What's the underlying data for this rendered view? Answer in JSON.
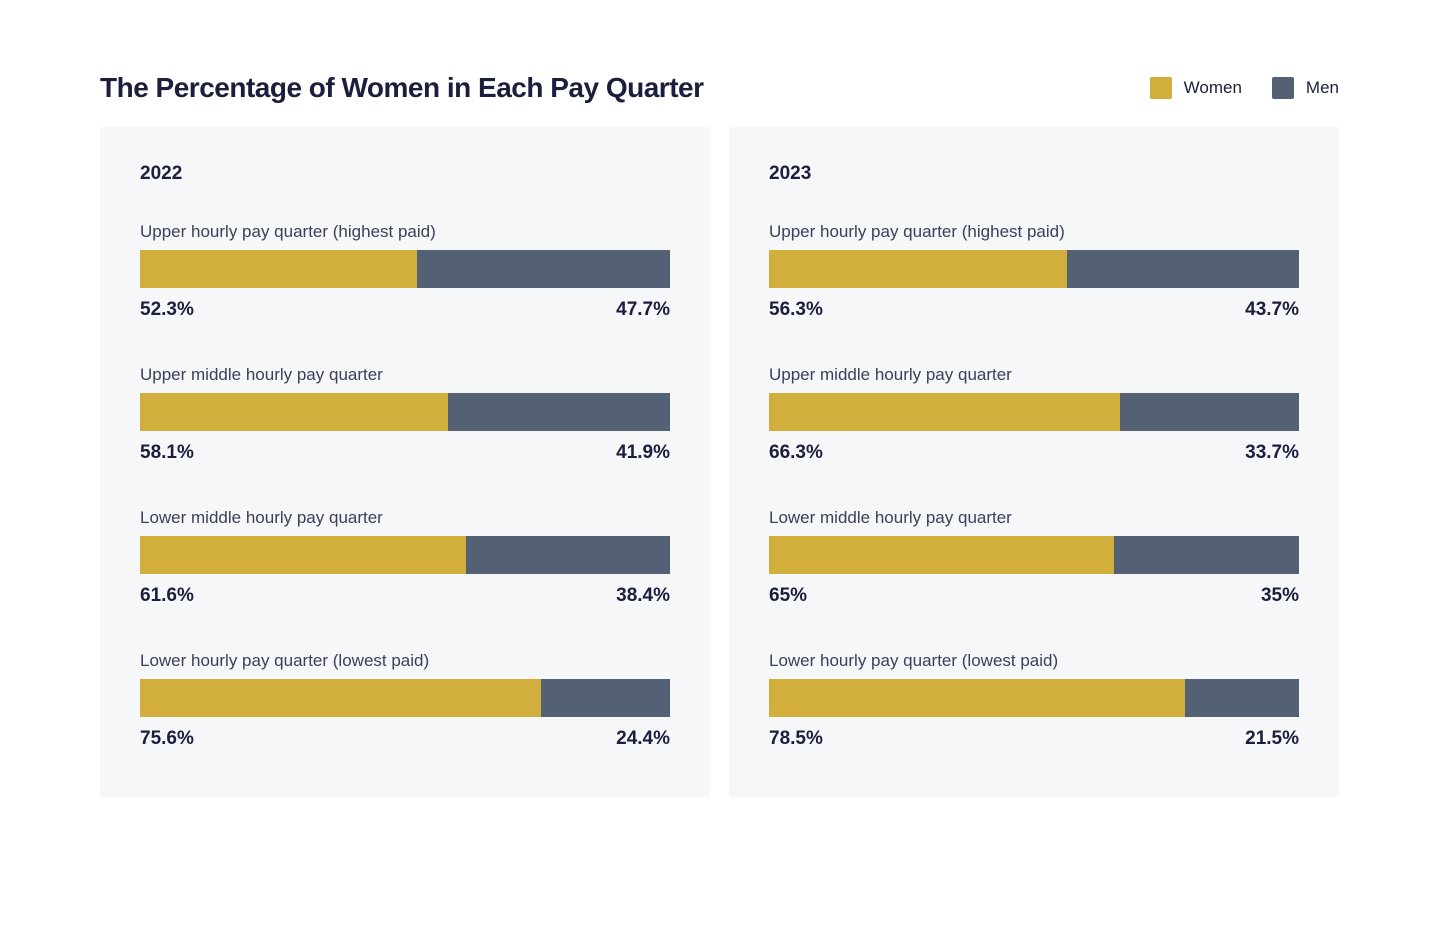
{
  "page": {
    "title": "The Percentage of Women in Each Pay Quarter"
  },
  "colors": {
    "women": "#D2AE3C",
    "men": "#546174",
    "panel_bg": "#F6F7F9",
    "text_dark": "#1B1E3C",
    "text_label": "#3A4059"
  },
  "legend": {
    "items": [
      {
        "label": "Women",
        "color": "#D2AE3C"
      },
      {
        "label": "Men",
        "color": "#546174"
      }
    ]
  },
  "panels": [
    {
      "year": "2022",
      "rows": [
        {
          "label": "Upper hourly pay quarter (highest paid)",
          "women": "52.3%",
          "men": "47.7%"
        },
        {
          "label": "Upper middle hourly pay quarter",
          "women": "58.1%",
          "men": "41.9%"
        },
        {
          "label": "Lower middle hourly pay quarter",
          "women": "61.6%",
          "men": "38.4%"
        },
        {
          "label": "Lower hourly pay quarter (lowest paid)",
          "women": "75.6%",
          "men": "24.4%"
        }
      ]
    },
    {
      "year": "2023",
      "rows": [
        {
          "label": "Upper hourly pay quarter (highest paid)",
          "women": "56.3%",
          "men": "43.7%"
        },
        {
          "label": "Upper middle hourly pay quarter",
          "women": "66.3%",
          "men": "33.7%"
        },
        {
          "label": "Lower middle hourly pay quarter",
          "women": "65%",
          "men": "35%"
        },
        {
          "label": "Lower hourly pay quarter (lowest paid)",
          "women": "78.5%",
          "men": "21.5%"
        }
      ]
    }
  ],
  "chart_data": [
    {
      "type": "bar",
      "subtype": "horizontal-stacked-100pct",
      "title": "2022",
      "categories": [
        "Upper hourly pay quarter (highest paid)",
        "Upper middle hourly pay quarter",
        "Lower middle hourly pay quarter",
        "Lower hourly pay quarter (lowest paid)"
      ],
      "series": [
        {
          "name": "Women",
          "color": "#D2AE3C",
          "values": [
            52.3,
            58.1,
            61.6,
            75.6
          ]
        },
        {
          "name": "Men",
          "color": "#546174",
          "values": [
            47.7,
            41.9,
            38.4,
            24.4
          ]
        }
      ],
      "xlim": [
        0,
        100
      ],
      "grid": false,
      "legend_position": "top-right"
    },
    {
      "type": "bar",
      "subtype": "horizontal-stacked-100pct",
      "title": "2023",
      "categories": [
        "Upper hourly pay quarter (highest paid)",
        "Upper middle hourly pay quarter",
        "Lower middle hourly pay quarter",
        "Lower hourly pay quarter (lowest paid)"
      ],
      "series": [
        {
          "name": "Women",
          "color": "#D2AE3C",
          "values": [
            56.3,
            66.3,
            65,
            78.5
          ]
        },
        {
          "name": "Men",
          "color": "#546174",
          "values": [
            43.7,
            33.7,
            35,
            21.5
          ]
        }
      ],
      "xlim": [
        0,
        100
      ],
      "grid": false,
      "legend_position": "top-right"
    }
  ]
}
